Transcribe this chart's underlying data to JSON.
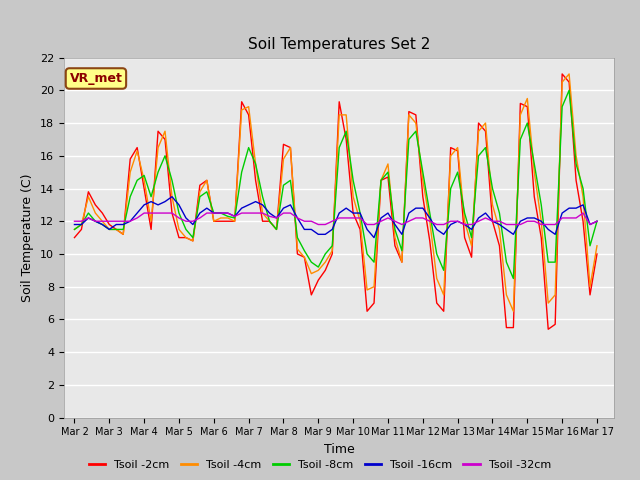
{
  "title": "Soil Temperatures Set 2",
  "xlabel": "Time",
  "ylabel": "Soil Temperature (C)",
  "ylim": [
    0,
    22
  ],
  "fig_facecolor": "#c8c8c8",
  "plot_bg_color": "#e8e8e8",
  "grid_color": "#ffffff",
  "annotation_text": "VR_met",
  "annotation_color": "#8b0000",
  "annotation_bg": "#ffff88",
  "annotation_border": "#8b4513",
  "x_tick_labels": [
    "Mar 2",
    "Mar 3",
    "Mar 4",
    "Mar 5",
    "Mar 6",
    "Mar 7",
    "Mar 8",
    "Mar 9",
    "Mar 10",
    "Mar 11",
    "Mar 12",
    "Mar 13",
    "Mar 14",
    "Mar 15",
    "Mar 16",
    "Mar 17"
  ],
  "series_colors": [
    "#ff0000",
    "#ff8c00",
    "#00cc00",
    "#0000cc",
    "#cc00cc"
  ],
  "series_labels": [
    "Tsoil -2cm",
    "Tsoil -4cm",
    "Tsoil -8cm",
    "Tsoil -16cm",
    "Tsoil -32cm"
  ],
  "line_width": 1.0,
  "tsoil_2cm": [
    11.0,
    11.5,
    13.8,
    13.0,
    12.5,
    11.8,
    11.5,
    11.2,
    15.8,
    16.5,
    14.0,
    11.5,
    17.5,
    17.0,
    12.5,
    11.0,
    11.0,
    10.8,
    14.2,
    14.5,
    12.0,
    12.0,
    12.0,
    12.0,
    19.3,
    18.5,
    14.5,
    12.0,
    12.0,
    11.5,
    16.7,
    16.5,
    10.0,
    9.8,
    7.5,
    8.4,
    9.0,
    10.0,
    19.3,
    17.0,
    12.5,
    11.5,
    6.5,
    7.0,
    14.5,
    14.7,
    10.5,
    9.5,
    18.7,
    18.5,
    13.5,
    10.8,
    7.0,
    6.5,
    16.5,
    16.3,
    11.0,
    9.8,
    18.0,
    17.5,
    12.0,
    10.5,
    5.5,
    5.5,
    19.2,
    19.0,
    13.5,
    11.0,
    5.4,
    5.7,
    21.0,
    20.5,
    14.5,
    12.0,
    7.5,
    10.0
  ],
  "tsoil_4cm": [
    11.5,
    11.8,
    13.5,
    12.5,
    12.0,
    11.5,
    11.5,
    11.2,
    15.0,
    16.3,
    14.5,
    12.0,
    16.5,
    17.5,
    13.5,
    11.5,
    11.0,
    10.8,
    13.8,
    14.5,
    12.0,
    12.2,
    12.2,
    12.0,
    18.8,
    19.0,
    15.5,
    12.5,
    12.0,
    11.5,
    15.8,
    16.5,
    10.3,
    9.8,
    8.8,
    9.0,
    9.5,
    10.2,
    18.5,
    18.5,
    13.5,
    12.0,
    7.8,
    8.0,
    14.5,
    15.5,
    11.0,
    9.5,
    18.5,
    18.0,
    14.5,
    12.0,
    8.5,
    7.5,
    16.0,
    16.5,
    12.0,
    10.5,
    17.5,
    18.0,
    13.0,
    11.5,
    7.5,
    6.5,
    18.5,
    19.5,
    15.0,
    12.0,
    7.0,
    7.5,
    20.5,
    21.0,
    16.0,
    13.5,
    8.0,
    10.5
  ],
  "tsoil_8cm": [
    11.5,
    11.8,
    12.5,
    12.0,
    11.8,
    11.5,
    11.5,
    11.5,
    13.5,
    14.5,
    14.8,
    13.5,
    15.0,
    16.0,
    14.5,
    12.5,
    11.5,
    11.0,
    13.5,
    13.8,
    12.5,
    12.5,
    12.3,
    12.2,
    15.0,
    16.5,
    15.5,
    13.5,
    12.0,
    11.5,
    14.2,
    14.5,
    11.0,
    10.2,
    9.5,
    9.2,
    10.0,
    10.5,
    16.5,
    17.5,
    14.5,
    12.5,
    10.0,
    9.5,
    14.5,
    15.0,
    11.5,
    10.2,
    17.0,
    17.5,
    15.0,
    12.5,
    10.0,
    9.0,
    14.0,
    15.0,
    12.5,
    11.0,
    16.0,
    16.5,
    14.0,
    12.5,
    9.5,
    8.5,
    17.0,
    18.0,
    15.5,
    13.0,
    9.5,
    9.5,
    19.0,
    20.0,
    15.5,
    14.0,
    10.5,
    12.0
  ],
  "tsoil_16cm": [
    11.8,
    11.8,
    12.2,
    12.0,
    11.8,
    11.5,
    11.8,
    11.8,
    12.0,
    12.5,
    13.0,
    13.2,
    13.0,
    13.2,
    13.5,
    13.0,
    12.2,
    11.8,
    12.5,
    12.8,
    12.5,
    12.5,
    12.5,
    12.3,
    12.8,
    13.0,
    13.2,
    13.0,
    12.5,
    12.2,
    12.8,
    13.0,
    12.2,
    11.5,
    11.5,
    11.2,
    11.2,
    11.5,
    12.5,
    12.8,
    12.5,
    12.5,
    11.5,
    11.0,
    12.2,
    12.5,
    11.8,
    11.2,
    12.5,
    12.8,
    12.8,
    12.2,
    11.5,
    11.2,
    11.8,
    12.0,
    11.8,
    11.5,
    12.2,
    12.5,
    12.0,
    11.8,
    11.5,
    11.2,
    12.0,
    12.2,
    12.2,
    12.0,
    11.5,
    11.2,
    12.5,
    12.8,
    12.8,
    13.0,
    11.8,
    12.0
  ],
  "tsoil_32cm": [
    12.0,
    12.0,
    12.2,
    12.0,
    12.0,
    12.0,
    12.0,
    12.0,
    12.0,
    12.2,
    12.5,
    12.5,
    12.5,
    12.5,
    12.5,
    12.2,
    12.0,
    12.0,
    12.2,
    12.5,
    12.5,
    12.5,
    12.5,
    12.3,
    12.5,
    12.5,
    12.5,
    12.5,
    12.3,
    12.2,
    12.5,
    12.5,
    12.2,
    12.0,
    12.0,
    11.8,
    11.8,
    12.0,
    12.2,
    12.2,
    12.2,
    12.2,
    11.8,
    11.8,
    12.0,
    12.2,
    12.0,
    11.8,
    12.0,
    12.2,
    12.2,
    12.0,
    11.8,
    11.8,
    12.0,
    12.0,
    11.8,
    11.8,
    12.0,
    12.2,
    12.0,
    12.0,
    11.8,
    11.8,
    11.8,
    12.0,
    12.0,
    11.8,
    11.8,
    11.8,
    12.2,
    12.2,
    12.2,
    12.5,
    11.8,
    12.0
  ]
}
